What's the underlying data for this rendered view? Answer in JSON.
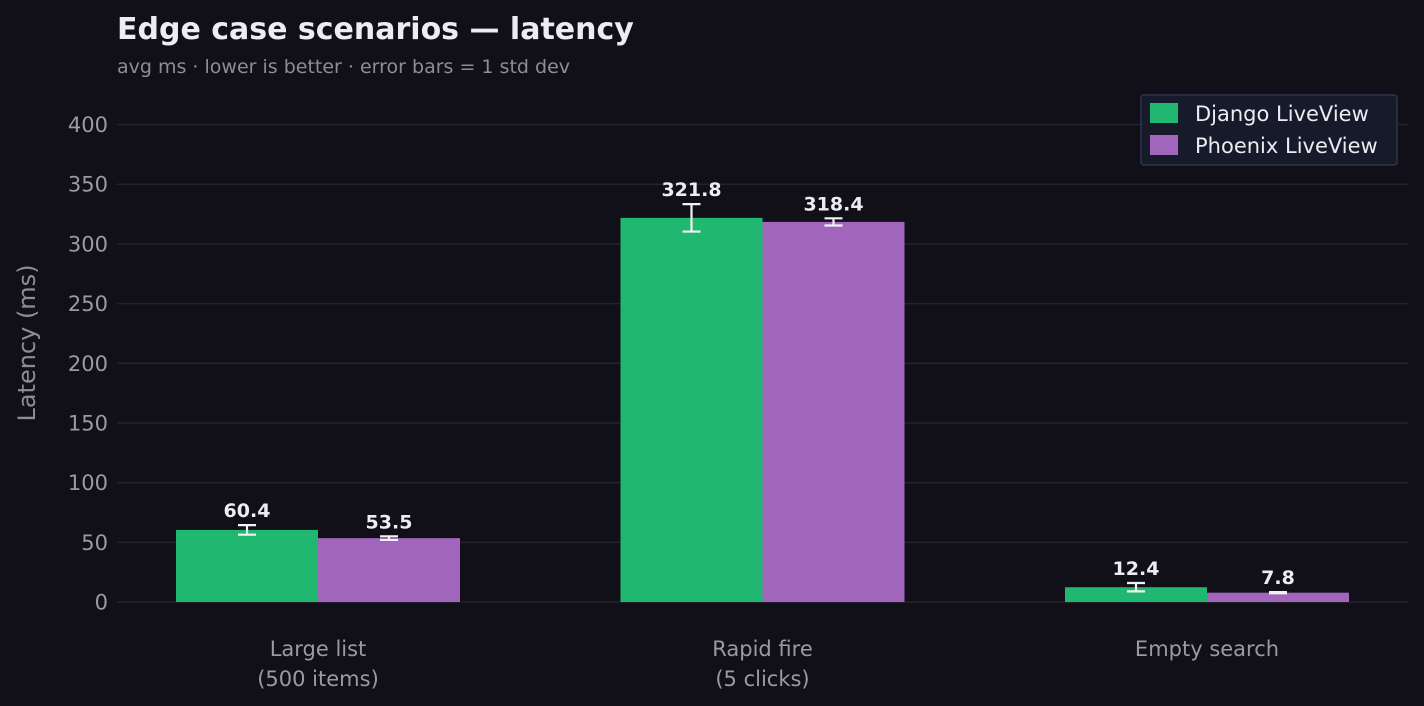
{
  "chart_data": {
    "type": "bar",
    "title": "Edge case scenarios — latency",
    "subtitle": "avg ms · lower is better · error bars = 1 std dev",
    "xlabel": "",
    "ylabel": "Latency (ms)",
    "ylim": [
      0,
      420
    ],
    "yticks": [
      0,
      50,
      100,
      150,
      200,
      250,
      300,
      350,
      400
    ],
    "grid": true,
    "legend_position": "top-right",
    "categories": [
      [
        "Large list",
        "(500 items)"
      ],
      [
        "Rapid fire",
        "(5 clicks)"
      ],
      [
        "Empty search"
      ]
    ],
    "series": [
      {
        "name": "Django LiveView",
        "color": "#20b870",
        "values": [
          60.4,
          321.8,
          12.4
        ],
        "labels": [
          "60.4",
          "321.8",
          "12.4"
        ],
        "errors": [
          4.0,
          11.5,
          3.5
        ]
      },
      {
        "name": "Phoenix LiveView",
        "color": "#a166bb",
        "values": [
          53.5,
          318.4,
          7.8
        ],
        "labels": [
          "53.5",
          "318.4",
          "7.8"
        ],
        "errors": [
          1.5,
          3.0,
          0.5
        ]
      }
    ]
  }
}
